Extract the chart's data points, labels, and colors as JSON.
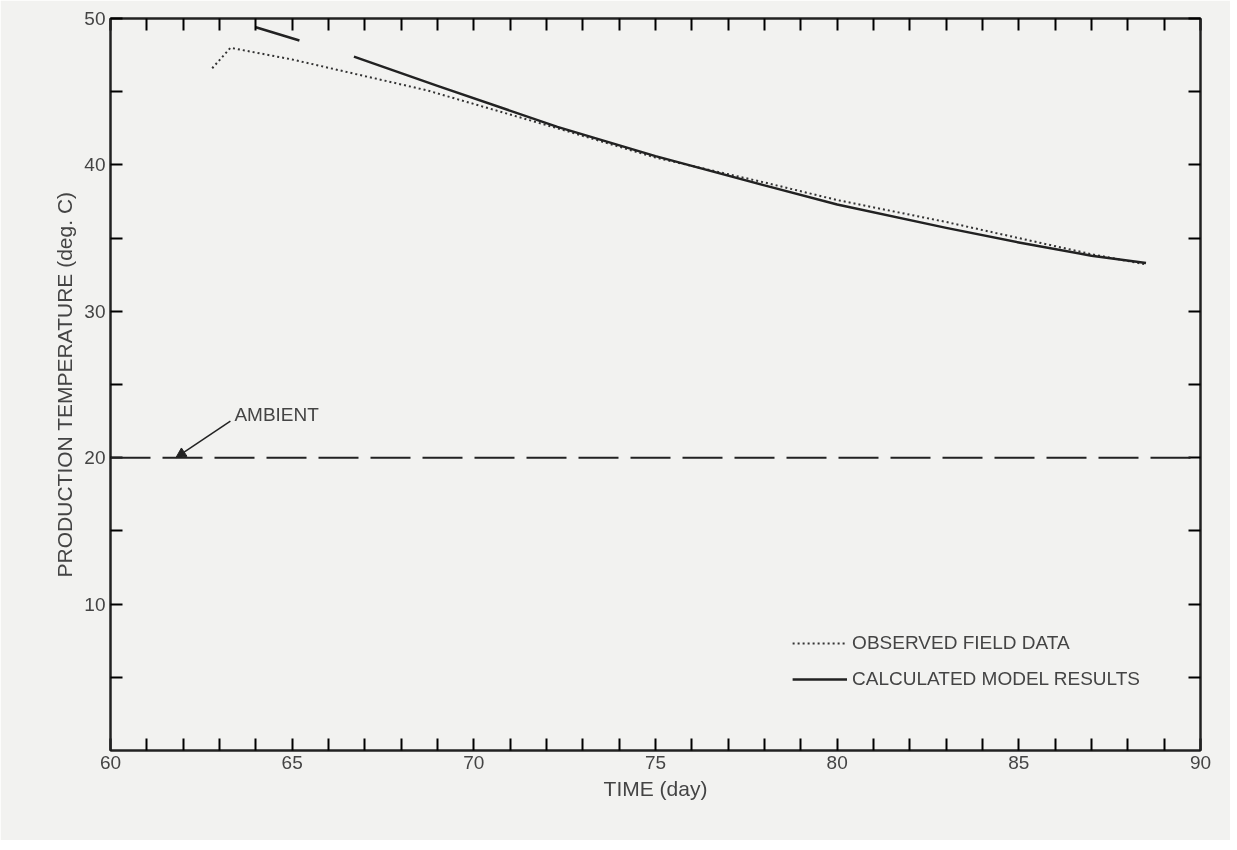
{
  "chart_data": {
    "type": "line",
    "xlabel": "TIME (day)",
    "ylabel": "PRODUCTION TEMPERATURE (deg. C)",
    "xlim": [
      60,
      90
    ],
    "ylim": [
      0,
      50
    ],
    "xticks": [
      60,
      {
        "value": 61,
        "label": null
      },
      {
        "value": 62,
        "label": null
      },
      {
        "value": 63,
        "label": null
      },
      {
        "value": 64,
        "label": null
      },
      65,
      {
        "value": 66,
        "label": null
      },
      {
        "value": 67,
        "label": null
      },
      {
        "value": 68,
        "label": null
      },
      {
        "value": 69,
        "label": null
      },
      70,
      {
        "value": 71,
        "label": null
      },
      {
        "value": 72,
        "label": null
      },
      {
        "value": 73,
        "label": null
      },
      {
        "value": 74,
        "label": null
      },
      75,
      {
        "value": 76,
        "label": null
      },
      {
        "value": 77,
        "label": null
      },
      {
        "value": 78,
        "label": null
      },
      {
        "value": 79,
        "label": null
      },
      80,
      {
        "value": 81,
        "label": null
      },
      {
        "value": 82,
        "label": null
      },
      {
        "value": 83,
        "label": null
      },
      {
        "value": 84,
        "label": null
      },
      85,
      {
        "value": 86,
        "label": null
      },
      {
        "value": 87,
        "label": null
      },
      {
        "value": 88,
        "label": null
      },
      {
        "value": 89,
        "label": null
      },
      90
    ],
    "yticks": [
      {
        "value": 5,
        "label": null
      },
      10,
      {
        "value": 15,
        "label": null
      },
      20,
      {
        "value": 25,
        "label": null
      },
      30,
      {
        "value": 35,
        "label": null
      },
      40,
      {
        "value": 45,
        "label": null
      },
      50
    ],
    "grid": false,
    "legend": "bottom right",
    "series": [
      {
        "name": "OBSERVED FIELD DATA",
        "color": "#333333",
        "line_style": "dotted",
        "x": [
          62.8,
          63.3,
          65,
          68.7,
          72.3,
          75,
          78,
          80,
          83,
          85,
          87,
          88.5
        ],
        "values": [
          46.6,
          48.0,
          47.2,
          45.1,
          42.5,
          40.5,
          38.8,
          37.6,
          36.1,
          35.0,
          33.9,
          33.2
        ]
      },
      {
        "name": "CALCULATED MODEL RESULTS",
        "color": "#222222",
        "line_style": "solid",
        "x": [
          64.0,
          65.2,
          66.0,
          66.7,
          69,
          72.3,
          75,
          78,
          80,
          83,
          85,
          87,
          88.5
        ],
        "values": [
          49.4,
          48.5,
          null,
          47.4,
          45.4,
          42.6,
          40.6,
          38.6,
          37.3,
          35.7,
          34.7,
          33.8,
          33.3
        ]
      }
    ],
    "ref_lines": [
      {
        "axis": "y",
        "value": 20,
        "label": "AMBIENT",
        "line_style": "dashed",
        "color": "#222222"
      }
    ]
  }
}
